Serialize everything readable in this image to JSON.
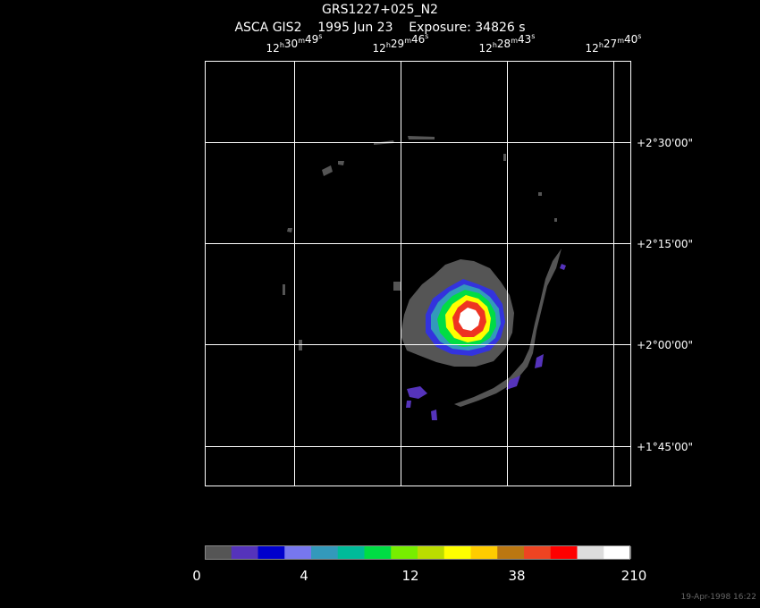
{
  "title": "GRS1227+025_N2",
  "subtitle": "ASCA GIS2    1995 Jun 23    Exposure: 34826 s",
  "ra_units": [
    "h",
    "m",
    "s"
  ],
  "ra_labels": [
    {
      "hours": "12",
      "minutes": "30",
      "seconds": "49"
    },
    {
      "hours": "12",
      "minutes": "29",
      "seconds": "46"
    },
    {
      "hours": "12",
      "minutes": "28",
      "seconds": "43"
    },
    {
      "hours": "12",
      "minutes": "27",
      "seconds": "40"
    }
  ],
  "dec_labels": [
    "+2°30'00\"",
    "+2°15'00\"",
    "+2°00'00\"",
    "+1°45'00\""
  ],
  "colorbar": {
    "colors": [
      "#555555",
      "#5533bb",
      "#0000cc",
      "#7777ee",
      "#3399bb",
      "#00bb99",
      "#00dd44",
      "#77ee00",
      "#bbdd00",
      "#ffff00",
      "#ffcc00",
      "#bb7711",
      "#ee4422",
      "#ff0000",
      "#dddddd",
      "#ffffff"
    ],
    "labels": [
      "0",
      "4",
      "12",
      "38",
      "210"
    ]
  },
  "timestamp": "19-Apr-1998 16:22"
}
